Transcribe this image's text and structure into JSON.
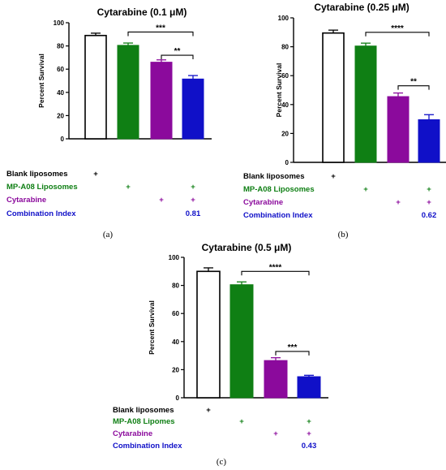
{
  "colors": {
    "blank": "#ffffff",
    "mp_a08": "#0f7f14",
    "cytarabine": "#8b0a9c",
    "combination": "#1010c8",
    "axis": "#000000"
  },
  "chart_data": [
    {
      "type": "bar",
      "title": "Cytarabine (0.1 μM)",
      "panel_label": "(a)",
      "ylabel": "Percent Survival",
      "ylim": [
        0,
        100
      ],
      "yticks": [
        "0",
        "20",
        "40",
        "60",
        "80",
        "100"
      ],
      "categories": [
        "Blank liposomes",
        "MP-A08 Liposomes",
        "Cytarabine",
        "Combination"
      ],
      "values": [
        89,
        80.5,
        66,
        51.5
      ],
      "errors": [
        2,
        2,
        2,
        3
      ],
      "bar_fills": [
        "#ffffff",
        "#0f7f14",
        "#8b0a9c",
        "#1010c8"
      ],
      "significance": [
        {
          "from": 1,
          "to": 3,
          "label": "***",
          "level": 92
        },
        {
          "from": 2,
          "to": 3,
          "label": "**",
          "level": 72
        }
      ],
      "rows": [
        {
          "label": "Blank liposomes",
          "color": "#000000",
          "marks": [
            "+",
            "",
            "",
            ""
          ]
        },
        {
          "label": "MP-A08 Liposomes",
          "color": "#0f7f14",
          "marks": [
            "",
            "+",
            "",
            "+"
          ]
        },
        {
          "label": "Cytarabine",
          "color": "#8b0a9c",
          "marks": [
            "",
            "",
            "+",
            "+"
          ]
        },
        {
          "label": "Combination Index",
          "color": "#1010c8",
          "marks": [
            "",
            "",
            "",
            "0.81"
          ]
        }
      ]
    },
    {
      "type": "bar",
      "title": "Cytarabine (0.25 μM)",
      "panel_label": "(b)",
      "ylabel": "Percent Survival",
      "ylim": [
        0,
        100
      ],
      "yticks": [
        "0",
        "20",
        "40",
        "60",
        "80",
        "100"
      ],
      "categories": [
        "Blank liposomes",
        "MP-A08 Liposomes",
        "Cytarabine",
        "Combination"
      ],
      "values": [
        89.5,
        80.5,
        45.5,
        29.5
      ],
      "errors": [
        2,
        2,
        2.5,
        3.5
      ],
      "bar_fills": [
        "#ffffff",
        "#0f7f14",
        "#8b0a9c",
        "#1010c8"
      ],
      "significance": [
        {
          "from": 1,
          "to": 3,
          "label": "****",
          "level": 90
        },
        {
          "from": 2,
          "to": 3,
          "label": "**",
          "level": 53
        }
      ],
      "rows": [
        {
          "label": "Blank liposomes",
          "color": "#000000",
          "marks": [
            "+",
            "",
            "",
            ""
          ]
        },
        {
          "label": "MP-A08 Liposomes",
          "color": "#0f7f14",
          "marks": [
            "",
            "+",
            "",
            "+"
          ]
        },
        {
          "label": "Cytarabine",
          "color": "#8b0a9c",
          "marks": [
            "",
            "",
            "+",
            "+"
          ]
        },
        {
          "label": "Combination Index",
          "color": "#1010c8",
          "marks": [
            "",
            "",
            "",
            "0.62"
          ]
        }
      ]
    },
    {
      "type": "bar",
      "title": "Cytarabine (0.5 μM)",
      "panel_label": "(c)",
      "ylabel": "Percent Survival",
      "ylim": [
        0,
        100
      ],
      "yticks": [
        "0",
        "20",
        "40",
        "60",
        "80",
        "100"
      ],
      "categories": [
        "Blank liposomes",
        "MP-A08 Lipomes",
        "Cytarabine",
        "Combination"
      ],
      "values": [
        90,
        80.5,
        26.5,
        15
      ],
      "errors": [
        2.5,
        2,
        2,
        1
      ],
      "bar_fills": [
        "#ffffff",
        "#0f7f14",
        "#8b0a9c",
        "#1010c8"
      ],
      "significance": [
        {
          "from": 1,
          "to": 3,
          "label": "****",
          "level": 90
        },
        {
          "from": 2,
          "to": 3,
          "label": "***",
          "level": 33
        }
      ],
      "rows": [
        {
          "label": "Blank liposomes",
          "color": "#000000",
          "marks": [
            "+",
            "",
            "",
            ""
          ]
        },
        {
          "label": "MP-A08 Lipomes",
          "color": "#0f7f14",
          "marks": [
            "",
            "+",
            "",
            "+"
          ]
        },
        {
          "label": "Cytarabine",
          "color": "#8b0a9c",
          "marks": [
            "",
            "",
            "+",
            "+"
          ]
        },
        {
          "label": "Combination Index",
          "color": "#1010c8",
          "marks": [
            "",
            "",
            "",
            "0.43"
          ]
        }
      ]
    }
  ]
}
